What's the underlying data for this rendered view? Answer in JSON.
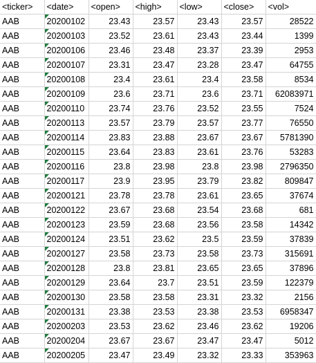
{
  "sheet": {
    "headers": [
      "<ticker>",
      "<date>",
      "<open>",
      "<high>",
      "<low>",
      "<close>",
      "<vol>"
    ],
    "rows": [
      [
        "AAB",
        "20200102",
        "23.43",
        "23.57",
        "23.43",
        "23.57",
        "28522"
      ],
      [
        "AAB",
        "20200103",
        "23.52",
        "23.61",
        "23.43",
        "23.44",
        "1399"
      ],
      [
        "AAB",
        "20200106",
        "23.46",
        "23.48",
        "23.37",
        "23.39",
        "2953"
      ],
      [
        "AAB",
        "20200107",
        "23.31",
        "23.47",
        "23.28",
        "23.47",
        "64755"
      ],
      [
        "AAB",
        "20200108",
        "23.4",
        "23.61",
        "23.4",
        "23.58",
        "8534"
      ],
      [
        "AAB",
        "20200109",
        "23.6",
        "23.71",
        "23.6",
        "23.71",
        "62083971"
      ],
      [
        "AAB",
        "20200110",
        "23.74",
        "23.76",
        "23.52",
        "23.55",
        "7524"
      ],
      [
        "AAB",
        "20200113",
        "23.57",
        "23.79",
        "23.57",
        "23.77",
        "76550"
      ],
      [
        "AAB",
        "20200114",
        "23.83",
        "23.88",
        "23.67",
        "23.67",
        "5781390"
      ],
      [
        "AAB",
        "20200115",
        "23.64",
        "23.83",
        "23.61",
        "23.76",
        "53283"
      ],
      [
        "AAB",
        "20200116",
        "23.8",
        "23.98",
        "23.8",
        "23.98",
        "2796350"
      ],
      [
        "AAB",
        "20200117",
        "23.9",
        "23.95",
        "23.79",
        "23.82",
        "809847"
      ],
      [
        "AAB",
        "20200121",
        "23.78",
        "23.78",
        "23.61",
        "23.65",
        "37674"
      ],
      [
        "AAB",
        "20200122",
        "23.67",
        "23.68",
        "23.54",
        "23.68",
        "681"
      ],
      [
        "AAB",
        "20200123",
        "23.59",
        "23.68",
        "23.56",
        "23.58",
        "14342"
      ],
      [
        "AAB",
        "20200124",
        "23.51",
        "23.62",
        "23.5",
        "23.59",
        "37839"
      ],
      [
        "AAB",
        "20200127",
        "23.58",
        "23.73",
        "23.58",
        "23.73",
        "315691"
      ],
      [
        "AAB",
        "20200128",
        "23.8",
        "23.81",
        "23.65",
        "23.65",
        "37896"
      ],
      [
        "AAB",
        "20200129",
        "23.64",
        "23.7",
        "23.51",
        "23.59",
        "122379"
      ],
      [
        "AAB",
        "20200130",
        "23.58",
        "23.58",
        "23.31",
        "23.32",
        "2156"
      ],
      [
        "AAB",
        "20200131",
        "23.38",
        "23.53",
        "23.38",
        "23.53",
        "6958347"
      ],
      [
        "AAB",
        "20200203",
        "23.53",
        "23.62",
        "23.46",
        "23.62",
        "19206"
      ],
      [
        "AAB",
        "20200204",
        "23.67",
        "23.67",
        "23.47",
        "23.47",
        "5012"
      ],
      [
        "AAB",
        "20200205",
        "23.47",
        "23.49",
        "23.32",
        "23.33",
        "353963"
      ]
    ]
  },
  "colors": {
    "gridline": "#d4d4d4",
    "error_indicator": "#1e7a3c"
  },
  "icons": {
    "date_cell_marker": "green-triangle-icon"
  }
}
